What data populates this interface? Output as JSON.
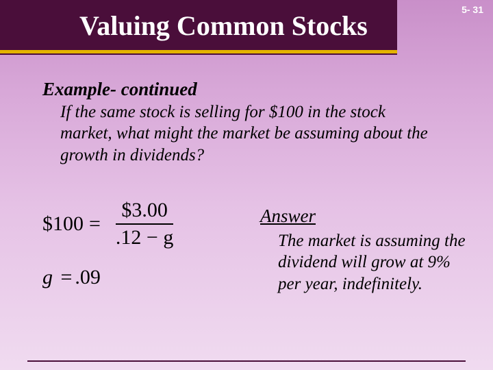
{
  "page_number": "5- 31",
  "title": "Valuing Common Stocks",
  "example_heading": "Example- continued",
  "question": "If the same stock is selling for $100 in the stock market, what might the market be assuming about the growth in dividends?",
  "equation": {
    "lhs": "$100",
    "equals": "=",
    "numerator": "$3.00",
    "denominator": ".12 − g",
    "result_lhs": "g",
    "result_eq": "=",
    "result_rhs": ".09"
  },
  "answer_heading": "Answer",
  "answer_text": "The market is assuming the dividend will grow at 9% per year, indefinitely.",
  "colors": {
    "title_bar": "#4a0e3a",
    "divider": "#e4b400",
    "page_number": "#ffffff",
    "title_text": "#ffffff",
    "body_text": "#000000",
    "bg_top": "#c98fc9",
    "bg_bottom": "#f0dbf0"
  },
  "fonts": {
    "title_size": 40,
    "heading_size": 27,
    "body_size": 25,
    "equation_size": 30,
    "page_number_size": 14
  }
}
